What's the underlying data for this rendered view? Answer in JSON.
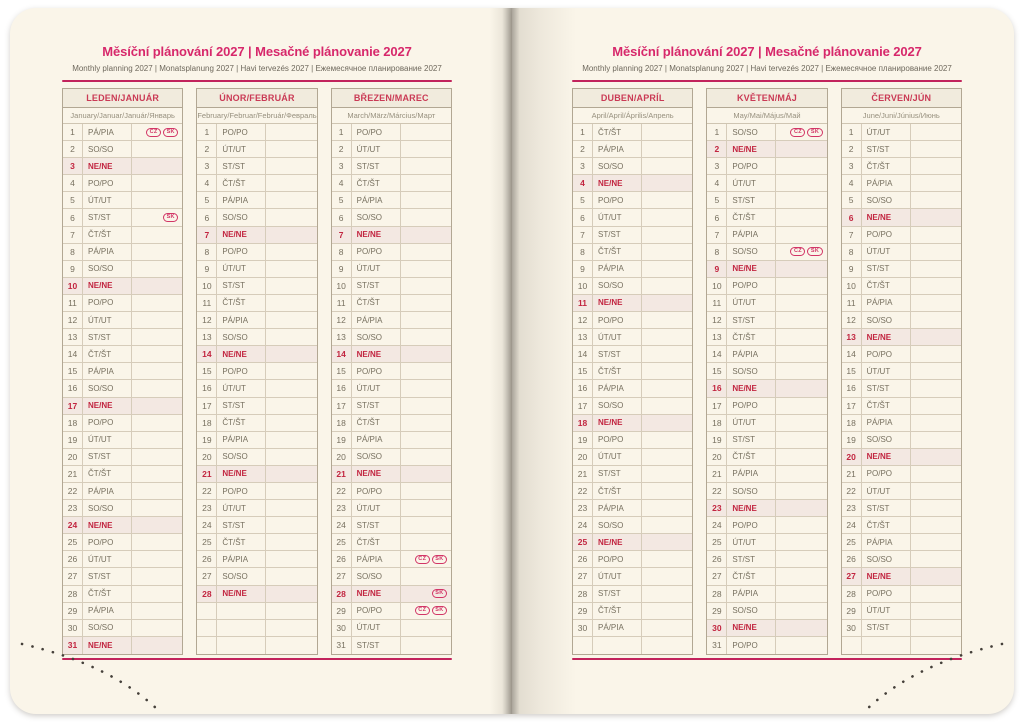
{
  "page_header": {
    "title": "Měsíční plánování 2027 | Mesačné plánovanie 2027",
    "subtitle": "Monthly planning 2027 | Monatsplanung 2027 | Havi tervezés 2027 | Ежемесячное планирование 2027"
  },
  "day_name_legend": {
    "monday": "PO/PO",
    "tuesday": "ÚT/UT",
    "wednesday": "ST/ST",
    "thursday": "ČT/ŠT",
    "friday": "PÁ/PIA",
    "saturday": "SO/SO",
    "sunday": "NE/NE"
  },
  "months": [
    {
      "name": "LEDEN/JANUÁR",
      "subtitle": "January/Januar/Január/Январь",
      "blank_rows": 0,
      "days": [
        [
          1,
          "PÁ/PIA",
          0,
          [
            "CZ",
            "SK"
          ]
        ],
        [
          2,
          "SO/SO",
          0
        ],
        [
          3,
          "NE/NE",
          1
        ],
        [
          4,
          "PO/PO",
          0
        ],
        [
          5,
          "ÚT/UT",
          0
        ],
        [
          6,
          "ST/ST",
          0,
          [
            "SK"
          ]
        ],
        [
          7,
          "ČT/ŠT",
          0
        ],
        [
          8,
          "PÁ/PIA",
          0
        ],
        [
          9,
          "SO/SO",
          0
        ],
        [
          10,
          "NE/NE",
          1
        ],
        [
          11,
          "PO/PO",
          0
        ],
        [
          12,
          "ÚT/UT",
          0
        ],
        [
          13,
          "ST/ST",
          0
        ],
        [
          14,
          "ČT/ŠT",
          0
        ],
        [
          15,
          "PÁ/PIA",
          0
        ],
        [
          16,
          "SO/SO",
          0
        ],
        [
          17,
          "NE/NE",
          1
        ],
        [
          18,
          "PO/PO",
          0
        ],
        [
          19,
          "ÚT/UT",
          0
        ],
        [
          20,
          "ST/ST",
          0
        ],
        [
          21,
          "ČT/ŠT",
          0
        ],
        [
          22,
          "PÁ/PIA",
          0
        ],
        [
          23,
          "SO/SO",
          0
        ],
        [
          24,
          "NE/NE",
          1
        ],
        [
          25,
          "PO/PO",
          0
        ],
        [
          26,
          "ÚT/UT",
          0
        ],
        [
          27,
          "ST/ST",
          0
        ],
        [
          28,
          "ČT/ŠT",
          0
        ],
        [
          29,
          "PÁ/PIA",
          0
        ],
        [
          30,
          "SO/SO",
          0
        ],
        [
          31,
          "NE/NE",
          1
        ]
      ]
    },
    {
      "name": "ÚNOR/FEBRUÁR",
      "subtitle": "February/Februar/Február/Февраль",
      "blank_rows": 3,
      "days": [
        [
          1,
          "PO/PO",
          0
        ],
        [
          2,
          "ÚT/UT",
          0
        ],
        [
          3,
          "ST/ST",
          0
        ],
        [
          4,
          "ČT/ŠT",
          0
        ],
        [
          5,
          "PÁ/PIA",
          0
        ],
        [
          6,
          "SO/SO",
          0
        ],
        [
          7,
          "NE/NE",
          1
        ],
        [
          8,
          "PO/PO",
          0
        ],
        [
          9,
          "ÚT/UT",
          0
        ],
        [
          10,
          "ST/ST",
          0
        ],
        [
          11,
          "ČT/ŠT",
          0
        ],
        [
          12,
          "PÁ/PIA",
          0
        ],
        [
          13,
          "SO/SO",
          0
        ],
        [
          14,
          "NE/NE",
          1
        ],
        [
          15,
          "PO/PO",
          0
        ],
        [
          16,
          "ÚT/UT",
          0
        ],
        [
          17,
          "ST/ST",
          0
        ],
        [
          18,
          "ČT/ŠT",
          0
        ],
        [
          19,
          "PÁ/PIA",
          0
        ],
        [
          20,
          "SO/SO",
          0
        ],
        [
          21,
          "NE/NE",
          1
        ],
        [
          22,
          "PO/PO",
          0
        ],
        [
          23,
          "ÚT/UT",
          0
        ],
        [
          24,
          "ST/ST",
          0
        ],
        [
          25,
          "ČT/ŠT",
          0
        ],
        [
          26,
          "PÁ/PIA",
          0
        ],
        [
          27,
          "SO/SO",
          0
        ],
        [
          28,
          "NE/NE",
          1
        ]
      ]
    },
    {
      "name": "BŘEZEN/MAREC",
      "subtitle": "March/März/Március/Март",
      "blank_rows": 0,
      "days": [
        [
          1,
          "PO/PO",
          0
        ],
        [
          2,
          "ÚT/UT",
          0
        ],
        [
          3,
          "ST/ST",
          0
        ],
        [
          4,
          "ČT/ŠT",
          0
        ],
        [
          5,
          "PÁ/PIA",
          0
        ],
        [
          6,
          "SO/SO",
          0
        ],
        [
          7,
          "NE/NE",
          1
        ],
        [
          8,
          "PO/PO",
          0
        ],
        [
          9,
          "ÚT/UT",
          0
        ],
        [
          10,
          "ST/ST",
          0
        ],
        [
          11,
          "ČT/ŠT",
          0
        ],
        [
          12,
          "PÁ/PIA",
          0
        ],
        [
          13,
          "SO/SO",
          0
        ],
        [
          14,
          "NE/NE",
          1
        ],
        [
          15,
          "PO/PO",
          0
        ],
        [
          16,
          "ÚT/UT",
          0
        ],
        [
          17,
          "ST/ST",
          0
        ],
        [
          18,
          "ČT/ŠT",
          0
        ],
        [
          19,
          "PÁ/PIA",
          0
        ],
        [
          20,
          "SO/SO",
          0
        ],
        [
          21,
          "NE/NE",
          1
        ],
        [
          22,
          "PO/PO",
          0
        ],
        [
          23,
          "ÚT/UT",
          0
        ],
        [
          24,
          "ST/ST",
          0
        ],
        [
          25,
          "ČT/ŠT",
          0
        ],
        [
          26,
          "PÁ/PIA",
          0,
          [
            "CZ",
            "SK"
          ]
        ],
        [
          27,
          "SO/SO",
          0
        ],
        [
          28,
          "NE/NE",
          1,
          [
            "SK"
          ]
        ],
        [
          29,
          "PO/PO",
          0,
          [
            "CZ",
            "SK"
          ]
        ],
        [
          30,
          "ÚT/UT",
          0
        ],
        [
          31,
          "ST/ST",
          0
        ]
      ]
    },
    {
      "name": "DUBEN/APRÍL",
      "subtitle": "April/April/Április/Апрель",
      "blank_rows": 1,
      "days": [
        [
          1,
          "ČT/ŠT",
          0
        ],
        [
          2,
          "PÁ/PIA",
          0
        ],
        [
          3,
          "SO/SO",
          0
        ],
        [
          4,
          "NE/NE",
          1
        ],
        [
          5,
          "PO/PO",
          0
        ],
        [
          6,
          "ÚT/UT",
          0
        ],
        [
          7,
          "ST/ST",
          0
        ],
        [
          8,
          "ČT/ŠT",
          0
        ],
        [
          9,
          "PÁ/PIA",
          0
        ],
        [
          10,
          "SO/SO",
          0
        ],
        [
          11,
          "NE/NE",
          1
        ],
        [
          12,
          "PO/PO",
          0
        ],
        [
          13,
          "ÚT/UT",
          0
        ],
        [
          14,
          "ST/ST",
          0
        ],
        [
          15,
          "ČT/ŠT",
          0
        ],
        [
          16,
          "PÁ/PIA",
          0
        ],
        [
          17,
          "SO/SO",
          0
        ],
        [
          18,
          "NE/NE",
          1
        ],
        [
          19,
          "PO/PO",
          0
        ],
        [
          20,
          "ÚT/UT",
          0
        ],
        [
          21,
          "ST/ST",
          0
        ],
        [
          22,
          "ČT/ŠT",
          0
        ],
        [
          23,
          "PÁ/PIA",
          0
        ],
        [
          24,
          "SO/SO",
          0
        ],
        [
          25,
          "NE/NE",
          1
        ],
        [
          26,
          "PO/PO",
          0
        ],
        [
          27,
          "ÚT/UT",
          0
        ],
        [
          28,
          "ST/ST",
          0
        ],
        [
          29,
          "ČT/ŠT",
          0
        ],
        [
          30,
          "PÁ/PIA",
          0
        ]
      ]
    },
    {
      "name": "KVĚTEN/MÁJ",
      "subtitle": "May/Mai/Május/Май",
      "blank_rows": 0,
      "days": [
        [
          1,
          "SO/SO",
          0,
          [
            "CZ",
            "SK"
          ]
        ],
        [
          2,
          "NE/NE",
          1
        ],
        [
          3,
          "PO/PO",
          0
        ],
        [
          4,
          "ÚT/UT",
          0
        ],
        [
          5,
          "ST/ST",
          0
        ],
        [
          6,
          "ČT/ŠT",
          0
        ],
        [
          7,
          "PÁ/PIA",
          0
        ],
        [
          8,
          "SO/SO",
          0,
          [
            "CZ",
            "SK"
          ]
        ],
        [
          9,
          "NE/NE",
          1
        ],
        [
          10,
          "PO/PO",
          0
        ],
        [
          11,
          "ÚT/UT",
          0
        ],
        [
          12,
          "ST/ST",
          0
        ],
        [
          13,
          "ČT/ŠT",
          0
        ],
        [
          14,
          "PÁ/PIA",
          0
        ],
        [
          15,
          "SO/SO",
          0
        ],
        [
          16,
          "NE/NE",
          1
        ],
        [
          17,
          "PO/PO",
          0
        ],
        [
          18,
          "ÚT/UT",
          0
        ],
        [
          19,
          "ST/ST",
          0
        ],
        [
          20,
          "ČT/ŠT",
          0
        ],
        [
          21,
          "PÁ/PIA",
          0
        ],
        [
          22,
          "SO/SO",
          0
        ],
        [
          23,
          "NE/NE",
          1
        ],
        [
          24,
          "PO/PO",
          0
        ],
        [
          25,
          "ÚT/UT",
          0
        ],
        [
          26,
          "ST/ST",
          0
        ],
        [
          27,
          "ČT/ŠT",
          0
        ],
        [
          28,
          "PÁ/PIA",
          0
        ],
        [
          29,
          "SO/SO",
          0
        ],
        [
          30,
          "NE/NE",
          1
        ],
        [
          31,
          "PO/PO",
          0
        ]
      ]
    },
    {
      "name": "ČERVEN/JÚN",
      "subtitle": "June/Juni/Június/Июнь",
      "blank_rows": 1,
      "days": [
        [
          1,
          "ÚT/UT",
          0
        ],
        [
          2,
          "ST/ST",
          0
        ],
        [
          3,
          "ČT/ŠT",
          0
        ],
        [
          4,
          "PÁ/PIA",
          0
        ],
        [
          5,
          "SO/SO",
          0
        ],
        [
          6,
          "NE/NE",
          1
        ],
        [
          7,
          "PO/PO",
          0
        ],
        [
          8,
          "ÚT/UT",
          0
        ],
        [
          9,
          "ST/ST",
          0
        ],
        [
          10,
          "ČT/ŠT",
          0
        ],
        [
          11,
          "PÁ/PIA",
          0
        ],
        [
          12,
          "SO/SO",
          0
        ],
        [
          13,
          "NE/NE",
          1
        ],
        [
          14,
          "PO/PO",
          0
        ],
        [
          15,
          "ÚT/UT",
          0
        ],
        [
          16,
          "ST/ST",
          0
        ],
        [
          17,
          "ČT/ŠT",
          0
        ],
        [
          18,
          "PÁ/PIA",
          0
        ],
        [
          19,
          "SO/SO",
          0
        ],
        [
          20,
          "NE/NE",
          1
        ],
        [
          21,
          "PO/PO",
          0
        ],
        [
          22,
          "ÚT/UT",
          0
        ],
        [
          23,
          "ST/ST",
          0
        ],
        [
          24,
          "ČT/ŠT",
          0
        ],
        [
          25,
          "PÁ/PIA",
          0
        ],
        [
          26,
          "SO/SO",
          0
        ],
        [
          27,
          "NE/NE",
          1
        ],
        [
          28,
          "PO/PO",
          0
        ],
        [
          29,
          "ÚT/UT",
          0
        ],
        [
          30,
          "ST/ST",
          0
        ]
      ]
    }
  ],
  "colors": {
    "accent_magenta": "#d7286b",
    "rule_magenta": "#c2235c",
    "month_title_red": "#ca3a55",
    "sunday_red": "#c22540",
    "sunday_row_bg": "#f3e8e2",
    "table_border": "#b2a793",
    "page_bg": "#faf5e9",
    "text_gray": "#77705f"
  }
}
